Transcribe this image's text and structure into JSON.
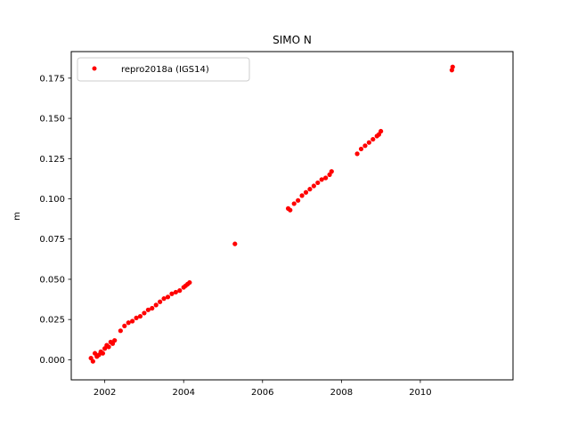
{
  "chart_data": {
    "type": "scatter",
    "title": "SIMO N",
    "xlabel": "",
    "ylabel": "m",
    "xlim": [
      2001.15,
      2012.35
    ],
    "ylim": [
      -0.0125,
      0.1915
    ],
    "x_ticks": [
      2002,
      2004,
      2006,
      2008,
      2010
    ],
    "x_tick_labels": [
      "2002",
      "2004",
      "2006",
      "2008",
      "2010"
    ],
    "y_ticks": [
      0.0,
      0.025,
      0.05,
      0.075,
      0.1,
      0.125,
      0.15,
      0.175
    ],
    "y_tick_labels": [
      "0.000",
      "0.025",
      "0.050",
      "0.075",
      "0.100",
      "0.125",
      "0.150",
      "0.175"
    ],
    "grid": false,
    "legend_position": "top-left",
    "series": [
      {
        "name": "repro2018a (IGS14)",
        "color": "#ff0000",
        "marker": "circle",
        "x": [
          2001.65,
          2001.7,
          2001.75,
          2001.8,
          2001.85,
          2001.9,
          2001.95,
          2002.0,
          2002.05,
          2002.1,
          2002.15,
          2002.2,
          2002.25,
          2002.4,
          2002.5,
          2002.6,
          2002.7,
          2002.8,
          2002.9,
          2003.0,
          2003.1,
          2003.2,
          2003.3,
          2003.4,
          2003.5,
          2003.6,
          2003.7,
          2003.8,
          2003.9,
          2004.0,
          2004.05,
          2004.1,
          2004.15,
          2005.3,
          2006.65,
          2006.7,
          2006.8,
          2006.9,
          2007.0,
          2007.1,
          2007.2,
          2007.3,
          2007.4,
          2007.5,
          2007.6,
          2007.7,
          2007.75,
          2008.4,
          2008.5,
          2008.6,
          2008.7,
          2008.8,
          2008.9,
          2008.95,
          2009.0,
          2010.8,
          2010.82
        ],
        "y": [
          0.001,
          -0.001,
          0.004,
          0.002,
          0.003,
          0.005,
          0.004,
          0.007,
          0.009,
          0.008,
          0.011,
          0.01,
          0.012,
          0.018,
          0.021,
          0.023,
          0.024,
          0.026,
          0.027,
          0.029,
          0.031,
          0.032,
          0.034,
          0.036,
          0.038,
          0.039,
          0.041,
          0.042,
          0.043,
          0.045,
          0.046,
          0.047,
          0.048,
          0.072,
          0.094,
          0.093,
          0.097,
          0.099,
          0.102,
          0.104,
          0.106,
          0.108,
          0.11,
          0.112,
          0.113,
          0.115,
          0.117,
          0.128,
          0.131,
          0.133,
          0.135,
          0.137,
          0.139,
          0.14,
          0.142,
          0.18,
          0.182
        ]
      }
    ]
  }
}
